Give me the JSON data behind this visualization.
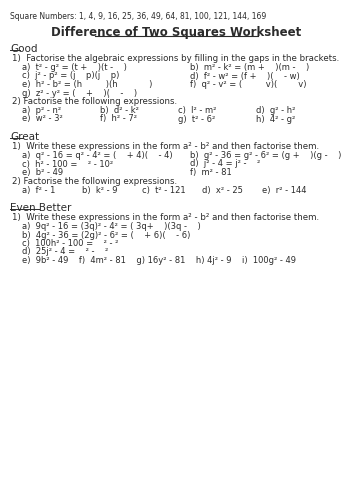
{
  "title": "Difference of Two Squares Worksheet",
  "header_note": "Square Numbers: 1, 4, 9, 16, 25, 36, 49, 64, 81, 100, 121, 144, 169",
  "bg_color": "#ffffff",
  "text_color": "#2b2b2b",
  "fs_note": 5.5,
  "fs_title": 8.5,
  "fs_section": 7.5,
  "fs_body": 6.0,
  "fs_instr": 6.2,
  "sections": [
    {
      "label": "Good",
      "content": [
        {
          "type": "instruction",
          "text": "1)  Factorise the algebraic expressions by filling in the gaps in the brackets."
        },
        {
          "type": "items_2col",
          "items": [
            "a)  t² - g² = (t +    )(t -    )",
            "b)  m² - k² = (m +    )(m -    )",
            "c)  j² - p² = (j    p)(j    p)",
            "d)  f² - w² = (f +    )(    - w)",
            "e)  h² - b² = (h         )(h            )",
            "f)  q² - v² = (         v)(        v)",
            "g)  z² - y² = (    +    )(    -    )"
          ]
        },
        {
          "type": "instruction",
          "text": "2) Factorise the following expressions."
        },
        {
          "type": "items_4col",
          "items": [
            "a)  p² - n²",
            "b)  d² - k²",
            "c)  l² - m²",
            "d)  g² - h²",
            "e)  w² - 3²",
            "f)  h² - 7²",
            "g)  t² - 6²",
            "h)  4² - g²"
          ]
        }
      ]
    },
    {
      "label": "Great",
      "content": [
        {
          "type": "instruction",
          "text": "1)  Write these expressions in the form a² - b² and then factorise them."
        },
        {
          "type": "items_2col",
          "items": [
            "a)  q² - 16 = q² - 4² = (    + 4)(    - 4)",
            "b)  g² - 36 = g² - 6² = (g +    )(g -    )",
            "c)  h² - 100 =    ² - 10²",
            "d)  j² - 4 = j² -    ²",
            "e)  b² - 49",
            "f)  m² - 81"
          ]
        },
        {
          "type": "instruction",
          "text": "2) Factorise the following expressions."
        },
        {
          "type": "items_5col",
          "items": [
            "a)  f² - 1",
            "b)  k² - 9",
            "c)  t² - 121",
            "d)  x² - 25",
            "e)  r² - 144"
          ]
        }
      ]
    },
    {
      "label": "Even Better",
      "content": [
        {
          "type": "instruction",
          "text": "1)  Write these expressions in the form a² - b² and then factorise them."
        },
        {
          "type": "items_1col",
          "items": [
            "a)  9q² - 16 = (3q)² - 4² = ( 3q+    )(3q -    )",
            "b)  4g² - 36 = (2g)² - 6² = (    + 6)(    - 6)",
            "c)  100h² - 100 =    ² - ²",
            "d)  25j² - 4 =    ² -    ²",
            "e)  9b² - 49    f)  4m² - 81    g) 16y² - 81    h) 4j² - 9    i)  100g² - 49"
          ]
        }
      ]
    }
  ]
}
